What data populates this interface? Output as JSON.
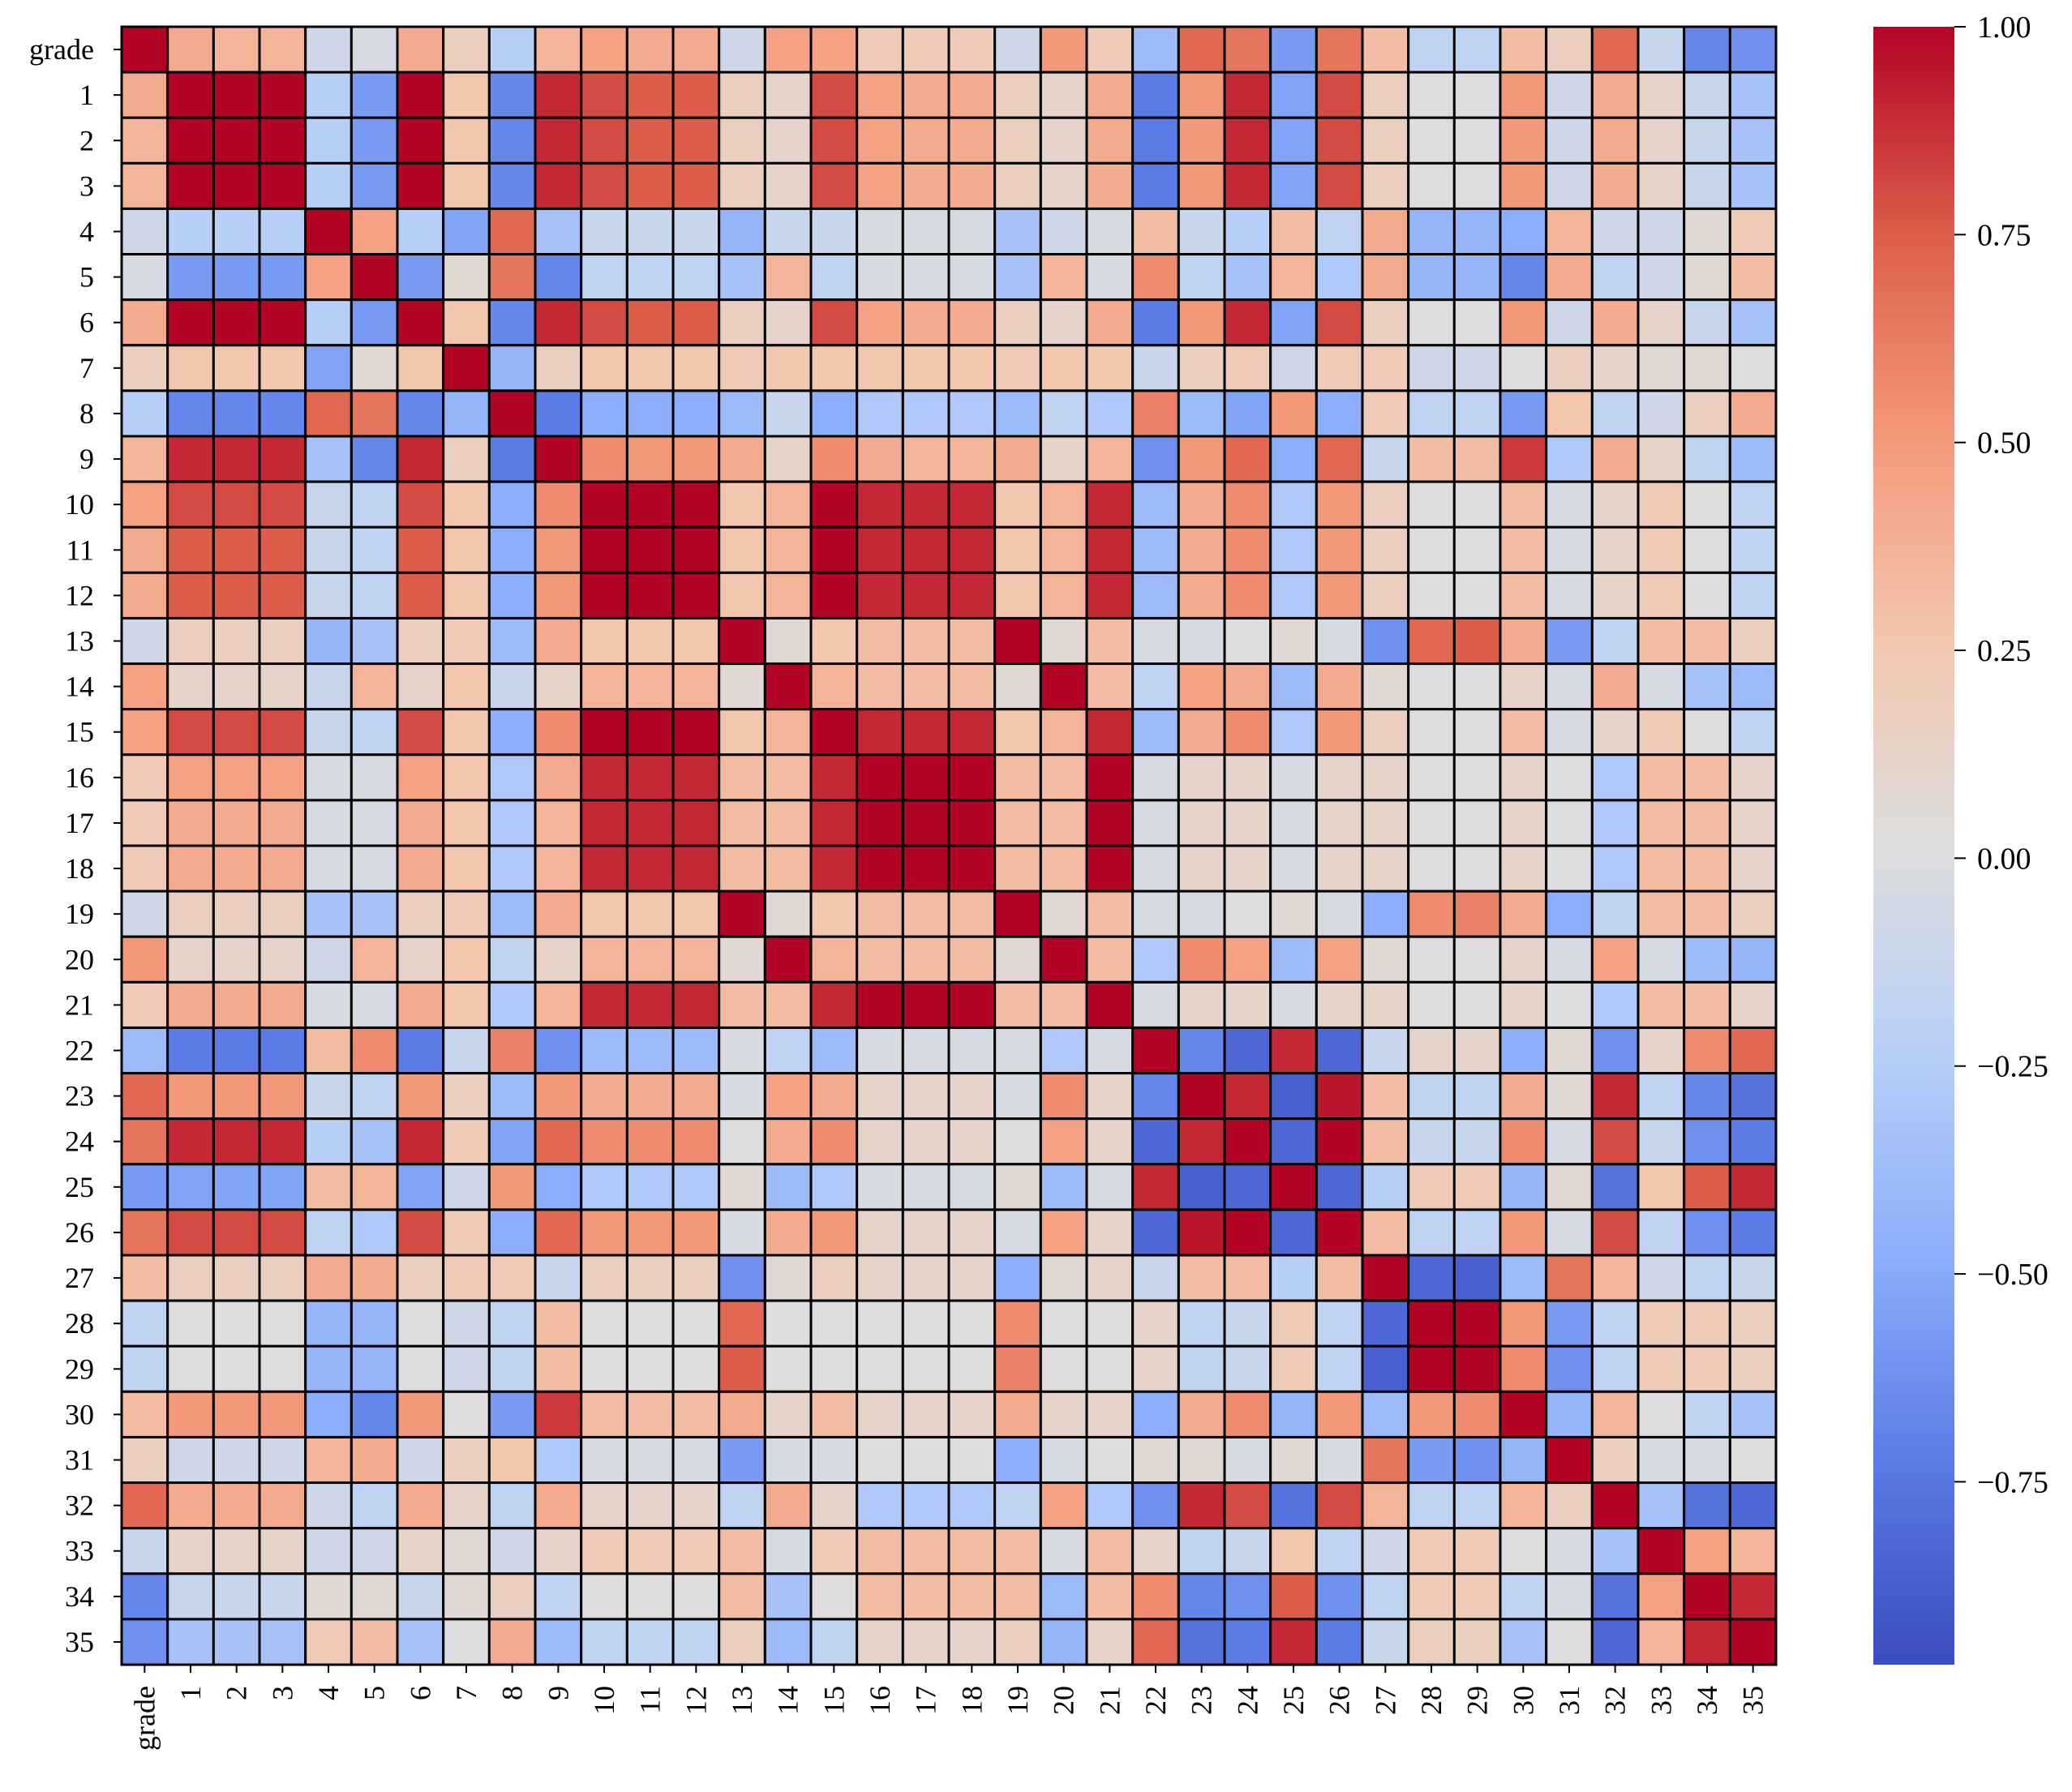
{
  "chart_data": {
    "type": "heatmap",
    "title": "",
    "xlabel": "",
    "ylabel": "",
    "labels": [
      "grade",
      "1",
      "2",
      "3",
      "4",
      "5",
      "6",
      "7",
      "8",
      "9",
      "10",
      "11",
      "12",
      "13",
      "14",
      "15",
      "16",
      "17",
      "18",
      "19",
      "20",
      "21",
      "22",
      "23",
      "24",
      "25",
      "26",
      "27",
      "28",
      "29",
      "30",
      "31",
      "32",
      "33",
      "34",
      "35"
    ],
    "values": [
      [
        1.0,
        0.4,
        0.35,
        0.35,
        -0.1,
        -0.05,
        0.4,
        0.15,
        -0.25,
        0.35,
        0.45,
        0.4,
        0.4,
        -0.1,
        0.45,
        0.45,
        0.2,
        0.2,
        0.2,
        -0.1,
        0.5,
        0.2,
        -0.4,
        0.7,
        0.65,
        -0.6,
        0.65,
        0.3,
        -0.2,
        -0.2,
        0.3,
        0.15,
        0.7,
        -0.15,
        -0.7,
        -0.65
      ],
      [
        0.4,
        1.0,
        1.0,
        1.0,
        -0.25,
        -0.6,
        1.0,
        0.25,
        -0.7,
        0.9,
        0.8,
        0.75,
        0.75,
        0.15,
        0.1,
        0.8,
        0.45,
        0.4,
        0.4,
        0.15,
        0.1,
        0.4,
        -0.75,
        0.5,
        0.9,
        -0.55,
        0.8,
        0.15,
        0.0,
        0.0,
        0.5,
        -0.1,
        0.4,
        0.1,
        -0.15,
        -0.35
      ],
      [
        0.35,
        1.0,
        1.0,
        1.0,
        -0.25,
        -0.6,
        1.0,
        0.25,
        -0.7,
        0.9,
        0.8,
        0.75,
        0.75,
        0.15,
        0.1,
        0.8,
        0.45,
        0.4,
        0.4,
        0.15,
        0.1,
        0.4,
        -0.75,
        0.5,
        0.9,
        -0.55,
        0.8,
        0.15,
        0.0,
        0.0,
        0.5,
        -0.1,
        0.4,
        0.1,
        -0.15,
        -0.35
      ],
      [
        0.35,
        1.0,
        1.0,
        1.0,
        -0.25,
        -0.6,
        1.0,
        0.25,
        -0.7,
        0.9,
        0.8,
        0.75,
        0.75,
        0.15,
        0.1,
        0.8,
        0.45,
        0.4,
        0.4,
        0.15,
        0.1,
        0.4,
        -0.75,
        0.5,
        0.9,
        -0.55,
        0.8,
        0.15,
        0.0,
        0.0,
        0.5,
        -0.1,
        0.4,
        0.1,
        -0.15,
        -0.35
      ],
      [
        -0.1,
        -0.25,
        -0.25,
        -0.25,
        1.0,
        0.45,
        -0.25,
        -0.55,
        0.7,
        -0.35,
        -0.15,
        -0.15,
        -0.15,
        -0.45,
        -0.15,
        -0.15,
        -0.05,
        -0.05,
        -0.05,
        -0.35,
        -0.1,
        -0.05,
        0.3,
        -0.15,
        -0.25,
        0.3,
        -0.2,
        0.4,
        -0.45,
        -0.45,
        -0.5,
        0.35,
        -0.1,
        -0.1,
        0.05,
        0.2
      ],
      [
        -0.05,
        -0.6,
        -0.6,
        -0.6,
        0.45,
        1.0,
        -0.6,
        0.05,
        0.65,
        -0.7,
        -0.2,
        -0.2,
        -0.2,
        -0.35,
        0.35,
        -0.2,
        -0.05,
        -0.05,
        -0.05,
        -0.35,
        0.35,
        -0.05,
        0.55,
        -0.2,
        -0.35,
        0.35,
        -0.3,
        0.4,
        -0.45,
        -0.45,
        -0.7,
        0.4,
        -0.2,
        -0.1,
        0.05,
        0.3
      ],
      [
        0.4,
        1.0,
        1.0,
        1.0,
        -0.25,
        -0.6,
        1.0,
        0.25,
        -0.7,
        0.9,
        0.8,
        0.75,
        0.75,
        0.15,
        0.1,
        0.8,
        0.45,
        0.4,
        0.4,
        0.15,
        0.1,
        0.4,
        -0.75,
        0.5,
        0.9,
        -0.55,
        0.8,
        0.15,
        0.0,
        0.0,
        0.5,
        -0.1,
        0.4,
        0.1,
        -0.15,
        -0.35
      ],
      [
        0.15,
        0.25,
        0.25,
        0.25,
        -0.55,
        0.05,
        0.25,
        1.0,
        -0.45,
        0.15,
        0.25,
        0.25,
        0.25,
        0.2,
        0.25,
        0.25,
        0.25,
        0.25,
        0.25,
        0.2,
        0.25,
        0.25,
        -0.15,
        0.15,
        0.2,
        -0.1,
        0.2,
        0.2,
        -0.1,
        -0.1,
        0.0,
        0.15,
        0.1,
        0.05,
        0.05,
        0.0
      ],
      [
        -0.25,
        -0.7,
        -0.7,
        -0.7,
        0.7,
        0.65,
        -0.7,
        -0.45,
        1.0,
        -0.75,
        -0.5,
        -0.5,
        -0.5,
        -0.4,
        -0.15,
        -0.5,
        -0.3,
        -0.3,
        -0.3,
        -0.4,
        -0.2,
        -0.3,
        0.6,
        -0.4,
        -0.55,
        0.5,
        -0.5,
        0.2,
        -0.2,
        -0.2,
        -0.6,
        0.25,
        -0.2,
        -0.1,
        0.15,
        0.4
      ],
      [
        0.35,
        0.9,
        0.9,
        0.9,
        -0.35,
        -0.7,
        0.9,
        0.15,
        -0.75,
        1.0,
        0.55,
        0.5,
        0.5,
        0.4,
        0.1,
        0.55,
        0.4,
        0.35,
        0.35,
        0.4,
        0.1,
        0.35,
        -0.65,
        0.5,
        0.7,
        -0.5,
        0.7,
        -0.15,
        0.3,
        0.3,
        0.85,
        -0.3,
        0.4,
        0.1,
        -0.2,
        -0.4
      ],
      [
        0.45,
        0.8,
        0.8,
        0.8,
        -0.15,
        -0.2,
        0.8,
        0.25,
        -0.5,
        0.55,
        1.0,
        1.0,
        1.0,
        0.25,
        0.35,
        1.0,
        0.9,
        0.9,
        0.9,
        0.25,
        0.35,
        0.9,
        -0.4,
        0.4,
        0.55,
        -0.3,
        0.5,
        0.15,
        0.0,
        0.0,
        0.3,
        -0.05,
        0.1,
        0.2,
        0.0,
        -0.2
      ],
      [
        0.4,
        0.75,
        0.75,
        0.75,
        -0.15,
        -0.2,
        0.75,
        0.25,
        -0.5,
        0.5,
        1.0,
        1.0,
        1.0,
        0.25,
        0.35,
        1.0,
        0.9,
        0.9,
        0.9,
        0.25,
        0.35,
        0.9,
        -0.4,
        0.4,
        0.55,
        -0.3,
        0.5,
        0.15,
        0.0,
        0.0,
        0.3,
        -0.05,
        0.1,
        0.2,
        0.0,
        -0.2
      ],
      [
        0.4,
        0.75,
        0.75,
        0.75,
        -0.15,
        -0.2,
        0.75,
        0.25,
        -0.5,
        0.5,
        1.0,
        1.0,
        1.0,
        0.25,
        0.35,
        1.0,
        0.9,
        0.9,
        0.9,
        0.25,
        0.35,
        0.9,
        -0.4,
        0.4,
        0.55,
        -0.3,
        0.5,
        0.15,
        0.0,
        0.0,
        0.3,
        -0.05,
        0.1,
        0.2,
        0.0,
        -0.2
      ],
      [
        -0.1,
        0.15,
        0.15,
        0.15,
        -0.45,
        -0.35,
        0.15,
        0.2,
        -0.4,
        0.4,
        0.25,
        0.25,
        0.25,
        1.0,
        0.05,
        0.25,
        0.3,
        0.3,
        0.3,
        1.0,
        0.05,
        0.3,
        -0.05,
        -0.05,
        0.0,
        0.05,
        -0.05,
        -0.65,
        0.7,
        0.75,
        0.4,
        -0.6,
        -0.2,
        0.3,
        0.3,
        0.15
      ],
      [
        0.45,
        0.1,
        0.1,
        0.1,
        -0.15,
        0.35,
        0.1,
        0.25,
        -0.15,
        0.1,
        0.35,
        0.35,
        0.35,
        0.05,
        1.0,
        0.35,
        0.3,
        0.3,
        0.3,
        0.05,
        1.0,
        0.3,
        -0.2,
        0.45,
        0.4,
        -0.4,
        0.4,
        0.05,
        0.0,
        0.0,
        0.1,
        -0.05,
        0.4,
        -0.05,
        -0.35,
        -0.4
      ],
      [
        0.45,
        0.8,
        0.8,
        0.8,
        -0.15,
        -0.2,
        0.8,
        0.25,
        -0.5,
        0.55,
        1.0,
        1.0,
        1.0,
        0.25,
        0.35,
        1.0,
        0.9,
        0.9,
        0.9,
        0.25,
        0.35,
        0.9,
        -0.4,
        0.4,
        0.55,
        -0.3,
        0.5,
        0.15,
        0.0,
        0.0,
        0.3,
        -0.05,
        0.1,
        0.2,
        0.0,
        -0.2
      ],
      [
        0.2,
        0.45,
        0.45,
        0.45,
        -0.05,
        -0.05,
        0.45,
        0.25,
        -0.3,
        0.4,
        0.9,
        0.9,
        0.9,
        0.3,
        0.3,
        0.9,
        1.0,
        1.0,
        1.0,
        0.3,
        0.3,
        1.0,
        -0.05,
        0.1,
        0.1,
        -0.05,
        0.1,
        0.1,
        0.0,
        0.0,
        0.1,
        0.0,
        -0.3,
        0.3,
        0.3,
        0.1
      ],
      [
        0.2,
        0.4,
        0.4,
        0.4,
        -0.05,
        -0.05,
        0.4,
        0.25,
        -0.3,
        0.35,
        0.9,
        0.9,
        0.9,
        0.3,
        0.3,
        0.9,
        1.0,
        1.0,
        1.0,
        0.3,
        0.3,
        1.0,
        -0.05,
        0.1,
        0.1,
        -0.05,
        0.1,
        0.1,
        0.0,
        0.0,
        0.1,
        0.0,
        -0.3,
        0.3,
        0.3,
        0.1
      ],
      [
        0.2,
        0.4,
        0.4,
        0.4,
        -0.05,
        -0.05,
        0.4,
        0.25,
        -0.3,
        0.35,
        0.9,
        0.9,
        0.9,
        0.3,
        0.3,
        0.9,
        1.0,
        1.0,
        1.0,
        0.3,
        0.3,
        1.0,
        -0.05,
        0.1,
        0.1,
        -0.05,
        0.1,
        0.1,
        0.0,
        0.0,
        0.1,
        0.0,
        -0.3,
        0.3,
        0.3,
        0.1
      ],
      [
        -0.1,
        0.15,
        0.15,
        0.15,
        -0.35,
        -0.35,
        0.15,
        0.2,
        -0.4,
        0.4,
        0.25,
        0.25,
        0.25,
        1.0,
        0.05,
        0.25,
        0.3,
        0.3,
        0.3,
        1.0,
        0.05,
        0.3,
        -0.05,
        -0.05,
        0.0,
        0.05,
        -0.05,
        -0.5,
        0.55,
        0.6,
        0.4,
        -0.5,
        -0.2,
        0.3,
        0.3,
        0.15
      ],
      [
        0.5,
        0.1,
        0.1,
        0.1,
        -0.1,
        0.35,
        0.1,
        0.25,
        -0.2,
        0.1,
        0.35,
        0.35,
        0.35,
        0.05,
        1.0,
        0.35,
        0.3,
        0.3,
        0.3,
        0.05,
        1.0,
        0.3,
        -0.3,
        0.55,
        0.45,
        -0.4,
        0.45,
        0.05,
        0.0,
        0.0,
        0.1,
        -0.05,
        0.45,
        -0.05,
        -0.4,
        -0.45
      ],
      [
        0.2,
        0.4,
        0.4,
        0.4,
        -0.05,
        -0.05,
        0.4,
        0.25,
        -0.3,
        0.35,
        0.9,
        0.9,
        0.9,
        0.3,
        0.3,
        0.9,
        1.0,
        1.0,
        1.0,
        0.3,
        0.3,
        1.0,
        -0.05,
        0.1,
        0.1,
        -0.05,
        0.1,
        0.1,
        0.0,
        0.0,
        0.1,
        0.0,
        -0.3,
        0.3,
        0.3,
        0.1
      ],
      [
        -0.4,
        -0.75,
        -0.75,
        -0.75,
        0.3,
        0.55,
        -0.75,
        -0.15,
        0.6,
        -0.65,
        -0.4,
        -0.4,
        -0.4,
        -0.05,
        -0.2,
        -0.4,
        -0.05,
        -0.05,
        -0.05,
        -0.05,
        -0.3,
        -0.05,
        1.0,
        -0.7,
        -0.85,
        0.9,
        -0.85,
        -0.15,
        0.1,
        0.1,
        -0.5,
        0.05,
        -0.65,
        0.1,
        0.55,
        0.7
      ],
      [
        0.7,
        0.5,
        0.5,
        0.5,
        -0.15,
        -0.2,
        0.5,
        0.15,
        -0.4,
        0.5,
        0.4,
        0.4,
        0.4,
        -0.05,
        0.45,
        0.4,
        0.1,
        0.1,
        0.1,
        -0.05,
        0.55,
        0.1,
        -0.7,
        1.0,
        0.9,
        -0.9,
        0.95,
        0.3,
        -0.2,
        -0.2,
        0.4,
        0.05,
        0.9,
        -0.2,
        -0.7,
        -0.8
      ],
      [
        0.65,
        0.9,
        0.9,
        0.9,
        -0.25,
        -0.35,
        0.9,
        0.2,
        -0.55,
        0.7,
        0.55,
        0.55,
        0.55,
        0.0,
        0.4,
        0.55,
        0.1,
        0.1,
        0.1,
        0.0,
        0.45,
        0.1,
        -0.85,
        0.9,
        1.0,
        -0.85,
        1.0,
        0.3,
        -0.15,
        -0.15,
        0.55,
        -0.05,
        0.8,
        -0.15,
        -0.65,
        -0.75
      ],
      [
        -0.6,
        -0.55,
        -0.55,
        -0.55,
        0.3,
        0.35,
        -0.55,
        -0.1,
        0.5,
        -0.5,
        -0.3,
        -0.3,
        -0.3,
        0.05,
        -0.4,
        -0.3,
        -0.05,
        -0.05,
        -0.05,
        0.05,
        -0.4,
        -0.05,
        0.9,
        -0.9,
        -0.85,
        1.0,
        -0.85,
        -0.25,
        0.2,
        0.2,
        -0.45,
        0.05,
        -0.8,
        0.25,
        0.75,
        0.9
      ],
      [
        0.65,
        0.8,
        0.8,
        0.8,
        -0.2,
        -0.3,
        0.8,
        0.2,
        -0.5,
        0.7,
        0.5,
        0.5,
        0.5,
        -0.05,
        0.4,
        0.5,
        0.1,
        0.1,
        0.1,
        -0.05,
        0.45,
        0.1,
        -0.85,
        0.95,
        1.0,
        -0.85,
        1.0,
        0.3,
        -0.2,
        -0.2,
        0.5,
        -0.05,
        0.8,
        -0.2,
        -0.65,
        -0.75
      ],
      [
        0.3,
        0.15,
        0.15,
        0.15,
        0.4,
        0.4,
        0.15,
        0.2,
        0.2,
        -0.15,
        0.15,
        0.15,
        0.15,
        -0.65,
        0.05,
        0.15,
        0.1,
        0.1,
        0.1,
        -0.5,
        0.05,
        0.1,
        -0.15,
        0.3,
        0.3,
        -0.25,
        0.3,
        1.0,
        -0.85,
        -0.9,
        -0.4,
        0.65,
        0.35,
        -0.1,
        -0.2,
        -0.15
      ],
      [
        -0.2,
        0.0,
        0.0,
        0.0,
        -0.45,
        -0.45,
        0.0,
        -0.1,
        -0.2,
        0.3,
        0.0,
        0.0,
        0.0,
        0.7,
        0.0,
        0.0,
        0.0,
        0.0,
        0.0,
        0.55,
        0.0,
        0.0,
        0.1,
        -0.2,
        -0.15,
        0.2,
        -0.2,
        -0.85,
        1.0,
        1.0,
        0.5,
        -0.6,
        -0.2,
        0.2,
        0.2,
        0.15
      ],
      [
        -0.2,
        0.0,
        0.0,
        0.0,
        -0.45,
        -0.45,
        0.0,
        -0.1,
        -0.2,
        0.3,
        0.0,
        0.0,
        0.0,
        0.75,
        0.0,
        0.0,
        0.0,
        0.0,
        0.0,
        0.6,
        0.0,
        0.0,
        0.1,
        -0.2,
        -0.15,
        0.2,
        -0.2,
        -0.9,
        1.0,
        1.0,
        0.55,
        -0.65,
        -0.2,
        0.2,
        0.2,
        0.15
      ],
      [
        0.3,
        0.5,
        0.5,
        0.5,
        -0.5,
        -0.7,
        0.5,
        0.0,
        -0.6,
        0.85,
        0.3,
        0.3,
        0.3,
        0.4,
        0.1,
        0.3,
        0.1,
        0.1,
        0.1,
        0.4,
        0.1,
        0.1,
        -0.5,
        0.4,
        0.55,
        -0.45,
        0.5,
        -0.4,
        0.5,
        0.55,
        1.0,
        -0.45,
        0.35,
        0.0,
        -0.2,
        -0.35
      ],
      [
        0.15,
        -0.1,
        -0.1,
        -0.1,
        0.35,
        0.4,
        -0.1,
        0.15,
        0.25,
        -0.3,
        -0.05,
        -0.05,
        -0.05,
        -0.6,
        -0.05,
        -0.05,
        0.0,
        0.0,
        0.0,
        -0.5,
        -0.05,
        0.0,
        0.05,
        0.05,
        -0.05,
        0.05,
        -0.05,
        0.65,
        -0.6,
        -0.65,
        -0.45,
        1.0,
        0.15,
        -0.05,
        -0.05,
        0.0
      ],
      [
        0.7,
        0.4,
        0.4,
        0.4,
        -0.1,
        -0.2,
        0.4,
        0.1,
        -0.2,
        0.4,
        0.1,
        0.1,
        0.1,
        -0.2,
        0.4,
        0.1,
        -0.3,
        -0.3,
        -0.3,
        -0.2,
        0.45,
        -0.3,
        -0.65,
        0.9,
        0.8,
        -0.8,
        0.8,
        0.35,
        -0.2,
        -0.2,
        0.35,
        0.15,
        1.0,
        -0.35,
        -0.8,
        -0.85
      ],
      [
        -0.15,
        0.1,
        0.1,
        0.1,
        -0.1,
        -0.1,
        0.1,
        0.05,
        -0.1,
        0.1,
        0.2,
        0.2,
        0.2,
        0.3,
        -0.05,
        0.2,
        0.3,
        0.3,
        0.3,
        0.3,
        -0.05,
        0.3,
        0.1,
        -0.2,
        -0.15,
        0.25,
        -0.2,
        -0.1,
        0.2,
        0.2,
        0.0,
        -0.05,
        -0.35,
        1.0,
        0.45,
        0.35
      ],
      [
        -0.7,
        -0.15,
        -0.15,
        -0.15,
        0.05,
        0.05,
        -0.15,
        0.05,
        0.15,
        -0.2,
        0.0,
        0.0,
        0.0,
        0.3,
        -0.35,
        0.0,
        0.3,
        0.3,
        0.3,
        0.3,
        -0.4,
        0.3,
        0.55,
        -0.7,
        -0.65,
        0.75,
        -0.65,
        -0.2,
        0.2,
        0.2,
        -0.2,
        -0.05,
        -0.8,
        0.45,
        1.0,
        0.9
      ],
      [
        -0.65,
        -0.35,
        -0.35,
        -0.35,
        0.2,
        0.3,
        -0.35,
        0.0,
        0.4,
        -0.4,
        -0.2,
        -0.2,
        -0.2,
        0.15,
        -0.4,
        -0.2,
        0.1,
        0.1,
        0.1,
        0.15,
        -0.45,
        0.1,
        0.7,
        -0.8,
        -0.75,
        0.9,
        -0.75,
        -0.15,
        0.15,
        0.15,
        -0.35,
        0.0,
        -0.85,
        0.35,
        0.9,
        1.0
      ]
    ],
    "vmin": -1.0,
    "vmax": 1.0,
    "colormap": "coolwarm",
    "colorbar_ticks": [
      "1.00",
      "0.75",
      "0.50",
      "0.25",
      "0.00",
      "−0.25",
      "−0.50",
      "−0.75"
    ],
    "grid_color": "#000000"
  }
}
